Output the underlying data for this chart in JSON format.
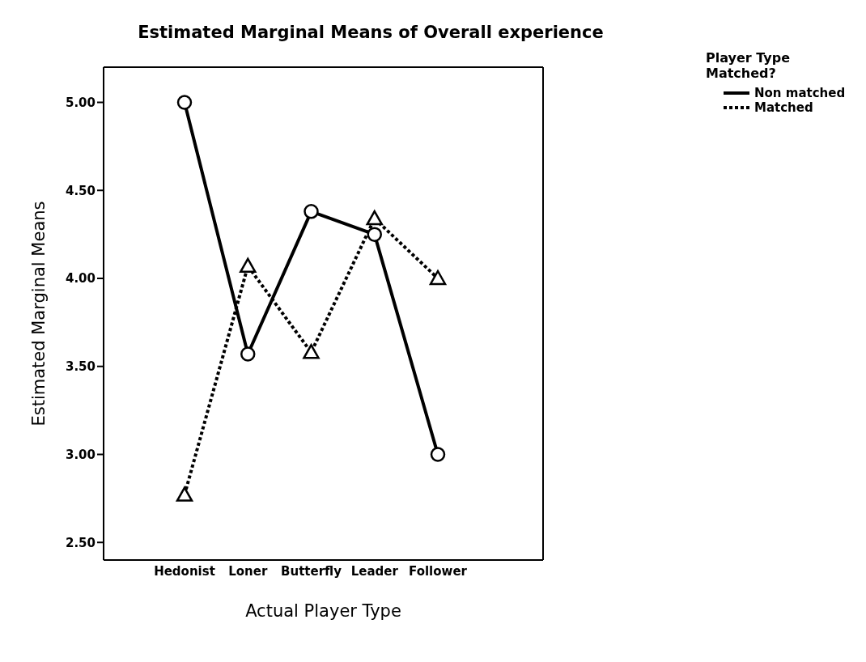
{
  "chart_data": {
    "type": "line",
    "title": "Estimated Marginal Means of Overall experience",
    "xlabel": "Actual Player Type",
    "ylabel": "Estimated Marginal Means",
    "legend_title": "Player Type Matched?",
    "categories": [
      "Hedonist",
      "Loner",
      "Butterfly",
      "Leader",
      "Follower"
    ],
    "series": [
      {
        "name": "Non matched",
        "color": "#000000",
        "values": [
          5.0,
          3.57,
          4.38,
          4.25,
          3.0
        ],
        "marker": "circle",
        "line_style": "solid"
      },
      {
        "name": "Matched",
        "color": "#000000",
        "values": [
          2.77,
          4.07,
          3.58,
          4.34,
          4.0
        ],
        "marker": "triangle",
        "line_style": "dotted"
      }
    ],
    "ylim": [
      2.4,
      5.2
    ],
    "yticks": [
      {
        "value": 2.5,
        "label": "2.50"
      },
      {
        "value": 3,
        "label": "3.00"
      },
      {
        "value": 3.5,
        "label": "3.50"
      },
      {
        "value": 4,
        "label": "4.00"
      },
      {
        "value": 4.5,
        "label": "4.50"
      },
      {
        "value": 5,
        "label": "5.00"
      }
    ],
    "grid": false,
    "legend": "top right"
  }
}
